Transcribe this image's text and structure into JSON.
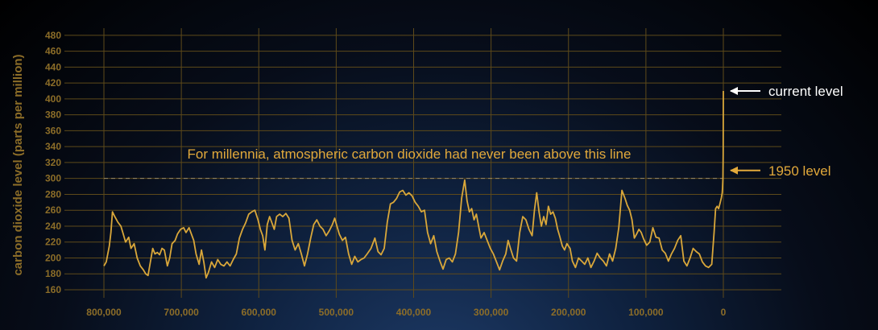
{
  "chart_data": {
    "type": "line",
    "ylabel": "carbon dioxide level (parts per million)",
    "xlabel": "",
    "x_reversed": true,
    "xlim": [
      800000,
      0
    ],
    "ylim": [
      150,
      490
    ],
    "grid": true,
    "yticks": [
      160,
      180,
      200,
      220,
      240,
      260,
      280,
      300,
      320,
      340,
      360,
      380,
      400,
      420,
      440,
      460,
      480
    ],
    "xticks": [
      {
        "value": 800000,
        "label": "800,000"
      },
      {
        "value": 700000,
        "label": "700,000"
      },
      {
        "value": 600000,
        "label": "600,000"
      },
      {
        "value": 500000,
        "label": "500,000"
      },
      {
        "value": 400000,
        "label": "400,000"
      },
      {
        "value": 300000,
        "label": "300,000"
      },
      {
        "value": 200000,
        "label": "200,000"
      },
      {
        "value": 100000,
        "label": "100,000"
      },
      {
        "value": 0,
        "label": "0"
      }
    ],
    "series": [
      {
        "color": "#d9a73a",
        "points": [
          [
            800000,
            190
          ],
          [
            797000,
            195
          ],
          [
            793000,
            215
          ],
          [
            791000,
            232
          ],
          [
            789000,
            258
          ],
          [
            786000,
            252
          ],
          [
            782000,
            245
          ],
          [
            778000,
            240
          ],
          [
            775000,
            230
          ],
          [
            772000,
            220
          ],
          [
            768000,
            226
          ],
          [
            765000,
            212
          ],
          [
            761000,
            218
          ],
          [
            757000,
            200
          ],
          [
            753000,
            190
          ],
          [
            749000,
            185
          ],
          [
            746000,
            180
          ],
          [
            743000,
            178
          ],
          [
            740000,
            195
          ],
          [
            737000,
            212
          ],
          [
            734000,
            205
          ],
          [
            731000,
            207
          ],
          [
            728000,
            204
          ],
          [
            725000,
            212
          ],
          [
            722000,
            210
          ],
          [
            718000,
            190
          ],
          [
            715000,
            200
          ],
          [
            712000,
            218
          ],
          [
            708000,
            222
          ],
          [
            705000,
            230
          ],
          [
            701000,
            236
          ],
          [
            697000,
            238
          ],
          [
            694000,
            232
          ],
          [
            690000,
            238
          ],
          [
            687000,
            230
          ],
          [
            684000,
            222
          ],
          [
            681000,
            205
          ],
          [
            677000,
            192
          ],
          [
            674000,
            210
          ],
          [
            671000,
            195
          ],
          [
            668000,
            175
          ],
          [
            665000,
            182
          ],
          [
            661000,
            195
          ],
          [
            657000,
            188
          ],
          [
            653000,
            198
          ],
          [
            649000,
            192
          ],
          [
            645000,
            190
          ],
          [
            641000,
            195
          ],
          [
            637000,
            190
          ],
          [
            633000,
            198
          ],
          [
            629000,
            205
          ],
          [
            625000,
            225
          ],
          [
            621000,
            236
          ],
          [
            617000,
            244
          ],
          [
            613000,
            255
          ],
          [
            609000,
            258
          ],
          [
            605000,
            260
          ],
          [
            601000,
            248
          ],
          [
            598000,
            236
          ],
          [
            595000,
            228
          ],
          [
            592000,
            210
          ],
          [
            589000,
            242
          ],
          [
            586000,
            252
          ],
          [
            583000,
            244
          ],
          [
            580000,
            236
          ],
          [
            577000,
            252
          ],
          [
            573000,
            255
          ],
          [
            569000,
            252
          ],
          [
            565000,
            256
          ],
          [
            561000,
            250
          ],
          [
            557000,
            222
          ],
          [
            553000,
            210
          ],
          [
            549000,
            218
          ],
          [
            545000,
            205
          ],
          [
            541000,
            190
          ],
          [
            537000,
            205
          ],
          [
            533000,
            225
          ],
          [
            529000,
            242
          ],
          [
            525000,
            248
          ],
          [
            521000,
            240
          ],
          [
            517000,
            236
          ],
          [
            513000,
            228
          ],
          [
            509000,
            234
          ],
          [
            505000,
            242
          ],
          [
            502000,
            250
          ],
          [
            499000,
            240
          ],
          [
            496000,
            230
          ],
          [
            492000,
            222
          ],
          [
            488000,
            226
          ],
          [
            484000,
            205
          ],
          [
            480000,
            192
          ],
          [
            476000,
            202
          ],
          [
            472000,
            195
          ],
          [
            468000,
            198
          ],
          [
            464000,
            200
          ],
          [
            460000,
            205
          ],
          [
            455000,
            212
          ],
          [
            450000,
            225
          ],
          [
            446000,
            208
          ],
          [
            442000,
            204
          ],
          [
            438000,
            212
          ],
          [
            434000,
            245
          ],
          [
            430000,
            268
          ],
          [
            426000,
            270
          ],
          [
            422000,
            275
          ],
          [
            418000,
            283
          ],
          [
            414000,
            285
          ],
          [
            410000,
            279
          ],
          [
            406000,
            282
          ],
          [
            402000,
            278
          ],
          [
            398000,
            270
          ],
          [
            394000,
            265
          ],
          [
            390000,
            258
          ],
          [
            386000,
            260
          ],
          [
            382000,
            232
          ],
          [
            378000,
            218
          ],
          [
            374000,
            228
          ],
          [
            370000,
            208
          ],
          [
            366000,
            196
          ],
          [
            362000,
            186
          ],
          [
            358000,
            198
          ],
          [
            354000,
            200
          ],
          [
            350000,
            195
          ],
          [
            346000,
            205
          ],
          [
            342000,
            232
          ],
          [
            338000,
            275
          ],
          [
            334000,
            298
          ],
          [
            331000,
            272
          ],
          [
            328000,
            258
          ],
          [
            325000,
            262
          ],
          [
            322000,
            248
          ],
          [
            319000,
            255
          ],
          [
            316000,
            240
          ],
          [
            313000,
            225
          ],
          [
            309000,
            232
          ],
          [
            305000,
            222
          ],
          [
            301000,
            212
          ],
          [
            297000,
            205
          ],
          [
            293000,
            195
          ],
          [
            289000,
            185
          ],
          [
            285000,
            196
          ],
          [
            281000,
            205
          ],
          [
            278000,
            222
          ],
          [
            275000,
            212
          ],
          [
            271000,
            200
          ],
          [
            267000,
            196
          ],
          [
            263000,
            232
          ],
          [
            259000,
            252
          ],
          [
            255000,
            248
          ],
          [
            251000,
            236
          ],
          [
            247000,
            228
          ],
          [
            244000,
            260
          ],
          [
            241000,
            282
          ],
          [
            238000,
            258
          ],
          [
            235000,
            240
          ],
          [
            232000,
            252
          ],
          [
            229000,
            242
          ],
          [
            226000,
            265
          ],
          [
            223000,
            255
          ],
          [
            220000,
            258
          ],
          [
            217000,
            250
          ],
          [
            214000,
            236
          ],
          [
            211000,
            226
          ],
          [
            208000,
            215
          ],
          [
            205000,
            210
          ],
          [
            202000,
            218
          ],
          [
            198000,
            212
          ],
          [
            195000,
            196
          ],
          [
            191000,
            188
          ],
          [
            187000,
            200
          ],
          [
            183000,
            196
          ],
          [
            179000,
            192
          ],
          [
            175000,
            200
          ],
          [
            171000,
            188
          ],
          [
            167000,
            196
          ],
          [
            163000,
            206
          ],
          [
            159000,
            200
          ],
          [
            155000,
            196
          ],
          [
            151000,
            190
          ],
          [
            147000,
            205
          ],
          [
            143000,
            196
          ],
          [
            139000,
            212
          ],
          [
            135000,
            238
          ],
          [
            131000,
            285
          ],
          [
            127000,
            275
          ],
          [
            124000,
            266
          ],
          [
            121000,
            260
          ],
          [
            118000,
            248
          ],
          [
            115000,
            225
          ],
          [
            112000,
            230
          ],
          [
            109000,
            236
          ],
          [
            106000,
            232
          ],
          [
            103000,
            224
          ],
          [
            99000,
            216
          ],
          [
            95000,
            220
          ],
          [
            91000,
            238
          ],
          [
            87000,
            226
          ],
          [
            83000,
            225
          ],
          [
            79000,
            210
          ],
          [
            75000,
            206
          ],
          [
            71000,
            196
          ],
          [
            67000,
            205
          ],
          [
            63000,
            212
          ],
          [
            59000,
            222
          ],
          [
            55000,
            228
          ],
          [
            51000,
            196
          ],
          [
            47000,
            190
          ],
          [
            43000,
            200
          ],
          [
            39000,
            212
          ],
          [
            35000,
            208
          ],
          [
            31000,
            205
          ],
          [
            27000,
            195
          ],
          [
            23000,
            190
          ],
          [
            19000,
            188
          ],
          [
            15000,
            192
          ],
          [
            12000,
            232
          ],
          [
            10000,
            262
          ],
          [
            8000,
            265
          ],
          [
            6000,
            262
          ],
          [
            4000,
            270
          ],
          [
            2500,
            276
          ],
          [
            1500,
            282
          ],
          [
            1000,
            288
          ],
          [
            500,
            300
          ],
          [
            200,
            330
          ],
          [
            100,
            370
          ],
          [
            0,
            410
          ]
        ]
      }
    ],
    "reference_line": {
      "value": 300,
      "label": "For millennia, atmospheric carbon dioxide had never been above this line"
    },
    "annotations": [
      {
        "label": "current level",
        "value": 410,
        "color": "#ffffff"
      },
      {
        "label": "1950 level",
        "value": 310,
        "color": "#e2a93b"
      }
    ]
  }
}
